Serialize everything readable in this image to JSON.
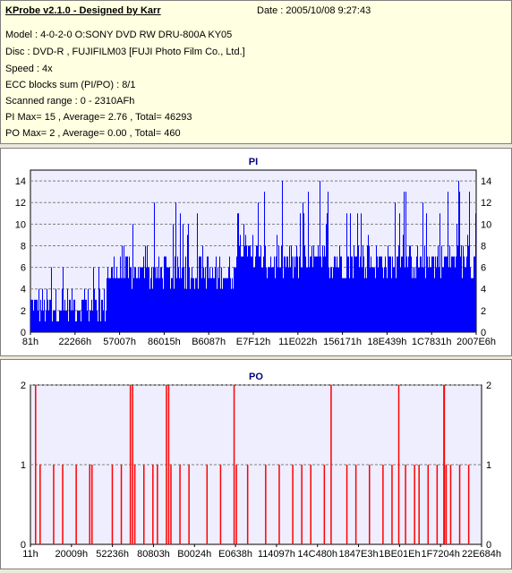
{
  "info": {
    "title": "KProbe v2.1.0 - Designed by Karr",
    "date": "Date : 2005/10/08 9:27:43",
    "lines": [
      "Model : 4-0-2-0 O:SONY    DVD RW DRU-800A  KY05",
      "Disc : DVD-R , FUJIFILM03 [FUJI Photo Film Co., Ltd.]",
      "Speed : 4x",
      "ECC blocks sum (PI/PO) : 8/1",
      "Scanned range : 0 - 2310AFh",
      "PI Max= 15 , Average= 2.76 , Total= 46293",
      "PO Max= 2 , Average= 0.00 , Total= 460"
    ]
  },
  "chart_data": [
    {
      "type": "bar",
      "title": "PI",
      "color": "#0000ff",
      "background": "#eeeeff",
      "ylim": [
        0,
        15
      ],
      "yticks": [
        0,
        2,
        4,
        6,
        8,
        10,
        12,
        14
      ],
      "xtick_labels": [
        "81h",
        "22266h",
        "57007h",
        "86015h",
        "B6087h",
        "E7F12h",
        "11E022h",
        "156171h",
        "18E439h",
        "1C7831h",
        "2007E6h"
      ],
      "x_range": [
        "0h",
        "2310AFh"
      ],
      "segments": [
        {
          "from": 0.0,
          "to": 0.17,
          "typical": 3,
          "max": 8
        },
        {
          "from": 0.17,
          "to": 0.46,
          "typical": 6,
          "max": 12
        },
        {
          "from": 0.46,
          "to": 0.49,
          "typical": 9,
          "max": 15
        },
        {
          "from": 0.49,
          "to": 1.0,
          "typical": 7,
          "max": 14
        }
      ]
    },
    {
      "type": "bar",
      "title": "PO",
      "color": "#ff0000",
      "background": "#eeeeff",
      "ylim": [
        0,
        2
      ],
      "yticks": [
        0,
        1,
        2
      ],
      "xtick_labels": [
        "11h",
        "20009h",
        "52236h",
        "80803h",
        "B0024h",
        "E0638h",
        "114097h",
        "14C480h",
        "1847E3h",
        "1BE01Eh",
        "1F7204h",
        "22E684h"
      ],
      "x_range": [
        "0h",
        "2310AFh"
      ],
      "spikes_value_2": [
        0.01,
        0.22,
        0.225,
        0.3,
        0.305,
        0.45,
        0.665,
        0.815,
        0.915,
        0.916
      ],
      "spikes_value_1": [
        0.02,
        0.05,
        0.07,
        0.1,
        0.13,
        0.135,
        0.18,
        0.2,
        0.23,
        0.25,
        0.27,
        0.28,
        0.31,
        0.33,
        0.35,
        0.39,
        0.42,
        0.455,
        0.48,
        0.52,
        0.55,
        0.58,
        0.6,
        0.62,
        0.65,
        0.7,
        0.72,
        0.75,
        0.78,
        0.8,
        0.83,
        0.85,
        0.86,
        0.88,
        0.9,
        0.92,
        0.93,
        0.95,
        0.97
      ]
    }
  ]
}
